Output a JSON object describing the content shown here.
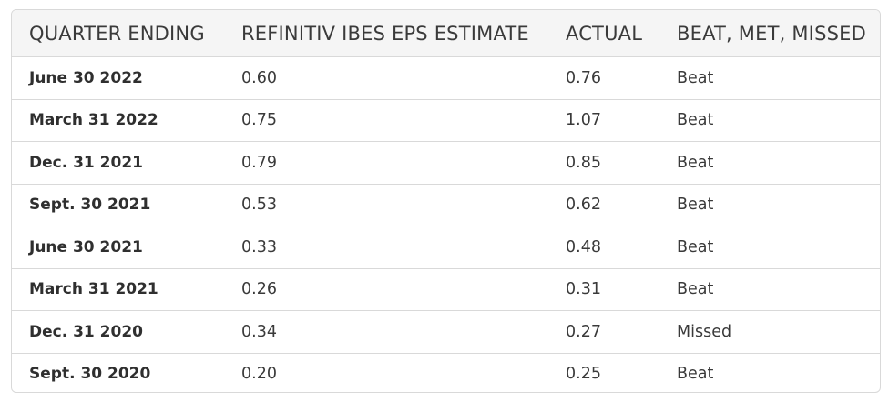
{
  "table": {
    "headers": [
      "QUARTER ENDING",
      "REFINITIV IBES EPS ESTIMATE",
      "ACTUAL",
      "BEAT, MET, MISSED"
    ],
    "rows": [
      {
        "quarter": "June 30 2022",
        "estimate": "0.60",
        "actual": "0.76",
        "result": "Beat"
      },
      {
        "quarter": "March 31 2022",
        "estimate": "0.75",
        "actual": "1.07",
        "result": "Beat"
      },
      {
        "quarter": "Dec. 31 2021",
        "estimate": "0.79",
        "actual": "0.85",
        "result": "Beat"
      },
      {
        "quarter": "Sept. 30 2021",
        "estimate": "0.53",
        "actual": "0.62",
        "result": "Beat"
      },
      {
        "quarter": "June 30 2021",
        "estimate": "0.33",
        "actual": "0.48",
        "result": "Beat"
      },
      {
        "quarter": "March 31 2021",
        "estimate": "0.26",
        "actual": "0.31",
        "result": "Beat"
      },
      {
        "quarter": "Dec. 31 2020",
        "estimate": "0.34",
        "actual": "0.27",
        "result": "Missed"
      },
      {
        "quarter": "Sept. 30 2020",
        "estimate": "0.20",
        "actual": "0.25",
        "result": "Beat"
      }
    ]
  },
  "colors": {
    "header_background": "#f5f5f5",
    "border": "#d9d9d9",
    "text": "#3a3a3a"
  }
}
